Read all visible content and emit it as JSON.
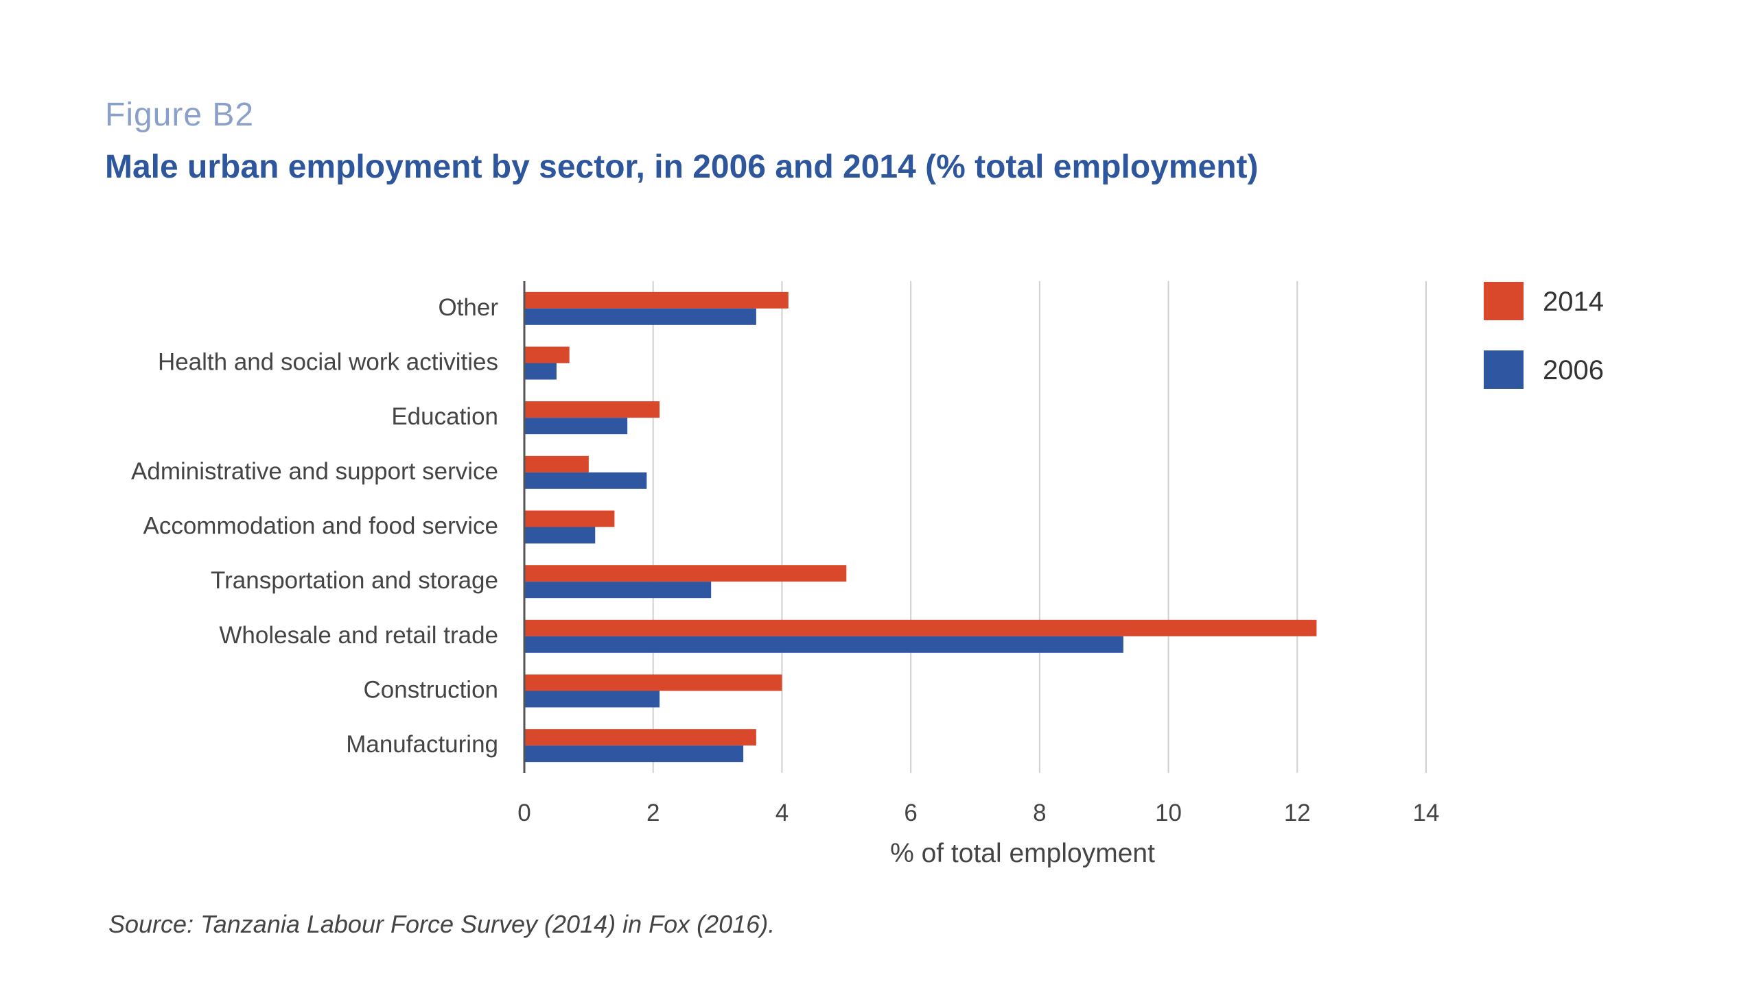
{
  "figure_label": "Figure B2",
  "title": "Male urban employment by sector, in 2006 and 2014 (% total employment)",
  "source": "Source: Tanzania Labour Force Survey (2014) in Fox (2016).",
  "colors": {
    "s2014": "#d9482b",
    "s2006": "#2f56a0",
    "grid": "#d0d0d0",
    "axis": "#555555"
  },
  "chart_data": {
    "type": "bar",
    "orientation": "horizontal",
    "categories": [
      "Other",
      "Health and social work activities",
      "Education",
      "Administrative and support service",
      "Accommodation and food service",
      "Transportation and storage",
      "Wholesale and retail trade",
      "Construction",
      "Manufacturing"
    ],
    "series": [
      {
        "name": "2014",
        "values": [
          4.1,
          0.7,
          2.1,
          1.0,
          1.4,
          5.0,
          12.3,
          4.0,
          3.6
        ]
      },
      {
        "name": "2006",
        "values": [
          3.6,
          0.5,
          1.6,
          1.9,
          1.1,
          2.9,
          9.3,
          2.1,
          3.4
        ]
      }
    ],
    "xlabel": "% of total employment",
    "ylabel": "",
    "xlim": [
      0,
      14
    ],
    "xticks": [
      "0",
      "2",
      "4",
      "6",
      "8",
      "10",
      "12",
      "14"
    ],
    "grid": true,
    "legend": "top-right"
  }
}
